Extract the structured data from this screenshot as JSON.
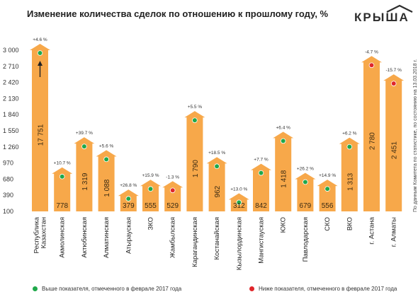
{
  "title": "Изменение количества сделок по отношению к прошлому году, %",
  "logo": {
    "text": "КРЫША"
  },
  "source_note": "По данным Комитета по статистике, по состоянию на 13.03.2018 г.",
  "legend": {
    "above": {
      "label": "Выше показателя, отмеченного в феврале 2017 года",
      "color": "#1fa84a"
    },
    "below": {
      "label": "Ниже показателя, отмеченного в феврале 2017 года",
      "color": "#e0262b"
    }
  },
  "colors": {
    "bar": "#f7a84a",
    "bar_tint": "#f9b866",
    "text_dark": "#3a2a12"
  },
  "chart_data": {
    "type": "bar",
    "title": "Изменение количества сделок по отношению к прошлому году, %",
    "y_ticks": [
      "3 000",
      "2 710",
      "2 420",
      "2 130",
      "1 840",
      "1 550",
      "1 260",
      "970",
      "680",
      "390",
      "100"
    ],
    "ylim": [
      100,
      3000
    ],
    "categories": [
      "Республика Казахстан",
      "Акмолинская",
      "Актюбинская",
      "Алматинская",
      "Атырауская",
      "ЗКО",
      "Жамбылская",
      "Карагандинская",
      "Костанайская",
      "Кызылординская",
      "Мангистауская",
      "ЮКО",
      "Павлодарская",
      "СКО",
      "ВКО",
      "г. Астана",
      "г. Алматы"
    ],
    "values": [
      17751,
      778,
      1319,
      1088,
      379,
      555,
      529,
      1790,
      962,
      312,
      842,
      1418,
      679,
      556,
      1313,
      2780,
      2451
    ],
    "value_labels": [
      "17 751",
      "778",
      "1 319",
      "1 088",
      "379",
      "555",
      "529",
      "1 790",
      "962",
      "312",
      "842",
      "1 418",
      "679",
      "556",
      "1 313",
      "2 780",
      "2 451"
    ],
    "change_labels": [
      "+4.6 %",
      "+10.7 %",
      "+39.7 %",
      "+5.6 %",
      "+26.8 %",
      "+15.9 %",
      "-1.3 %",
      "+5.5 %",
      "+18.5 %",
      "+13.0 %",
      "+7.7 %",
      "+6.4 %",
      "+26.2 %",
      "+14.9 %",
      "+6.2 %",
      "-4.7 %",
      "-15.7 %"
    ],
    "status": [
      "above",
      "above",
      "above",
      "above",
      "above",
      "above",
      "below",
      "above",
      "above",
      "above",
      "above",
      "above",
      "above",
      "above",
      "above",
      "below",
      "below"
    ],
    "truncated": [
      true,
      false,
      false,
      false,
      false,
      false,
      false,
      false,
      false,
      false,
      false,
      false,
      false,
      false,
      false,
      false,
      false
    ]
  }
}
